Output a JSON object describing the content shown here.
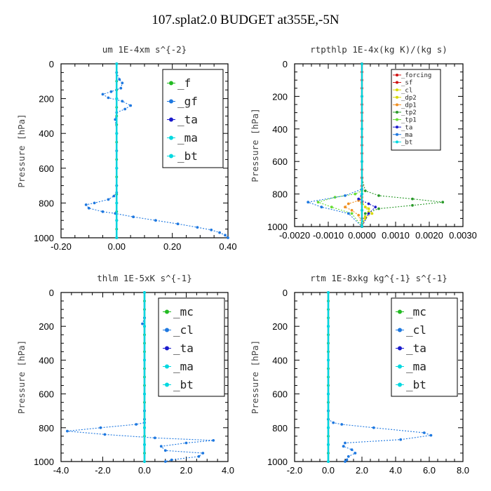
{
  "figure_title": "107.splat2.0  BUDGET at355E,-5N",
  "colors": {
    "green": "#22bb22",
    "blue": "#1e78e0",
    "navy": "#1a1acc",
    "cyan": "#00d8e0",
    "red": "#d01010",
    "orange": "#f09020",
    "yellow": "#d8d800",
    "lime": "#66dd33",
    "darkgreen": "#2a9a2a"
  },
  "chart_data": [
    {
      "type": "line",
      "title": "um   1E-4xm s^{-2}",
      "ylabel": "Pressure [hPa]",
      "xlim": [
        -0.2,
        0.4
      ],
      "ylim": [
        1000,
        0
      ],
      "xticks": [
        "-0.20",
        "0.00",
        "0.20",
        "0.40"
      ],
      "yticks": [
        "0",
        "200",
        "400",
        "600",
        "800",
        "1000"
      ],
      "legend": {
        "position": "top-right",
        "entries": [
          "_f",
          "_gf",
          "_ta",
          "_ma",
          "_bt"
        ]
      },
      "series": [
        {
          "name": "_f",
          "color": "#22bb22",
          "x": [
            0,
            0,
            0,
            0,
            0,
            0,
            0,
            0,
            0,
            0,
            0,
            0,
            0,
            0,
            0,
            0,
            0,
            0,
            0,
            0,
            0
          ],
          "y": [
            0,
            50,
            100,
            150,
            200,
            250,
            300,
            350,
            400,
            450,
            500,
            550,
            600,
            650,
            700,
            750,
            800,
            850,
            900,
            950,
            1000
          ]
        },
        {
          "name": "_gf",
          "color": "#1e78e0",
          "x": [
            0,
            0,
            0.01,
            0.02,
            0.015,
            -0.02,
            -0.05,
            -0.03,
            0.02,
            0.05,
            0.03,
            0,
            -0.005,
            0,
            0,
            0,
            0,
            0,
            -0.01,
            -0.03,
            -0.08,
            -0.11,
            -0.1,
            -0.05,
            -0.005,
            0.06,
            0.14,
            0.22,
            0.29,
            0.34,
            0.37,
            0.39,
            0.4
          ],
          "y": [
            0,
            50,
            90,
            110,
            140,
            160,
            175,
            195,
            215,
            240,
            260,
            280,
            320,
            400,
            500,
            600,
            700,
            740,
            760,
            780,
            800,
            810,
            830,
            850,
            860,
            880,
            900,
            920,
            940,
            955,
            970,
            985,
            1000
          ]
        },
        {
          "name": "_ta",
          "color": "#1a1acc",
          "x": [
            0,
            0,
            0,
            0,
            0,
            0,
            0
          ],
          "y": [
            0,
            200,
            400,
            600,
            800,
            900,
            1000
          ]
        },
        {
          "name": "_ma",
          "color": "#00d8e0",
          "x": [
            0,
            0,
            0,
            0,
            0,
            0,
            0
          ],
          "y": [
            0,
            200,
            400,
            600,
            800,
            900,
            1000
          ]
        },
        {
          "name": "_bt",
          "color": "#00d8e0",
          "x": [
            0,
            0,
            0,
            0,
            0,
            0,
            0
          ],
          "y": [
            0,
            200,
            400,
            600,
            800,
            900,
            1000
          ]
        }
      ]
    },
    {
      "type": "line",
      "title": "rtpthlp   1E-4x(kg K)/(kg s)",
      "ylabel": "Pressure [hPa]",
      "xlim": [
        -0.002,
        0.003
      ],
      "ylim": [
        1000,
        0
      ],
      "xticks": [
        "-0.0020",
        "-0.0010",
        "0.0000",
        "0.0010",
        "0.0020",
        "0.0030"
      ],
      "yticks": [
        "0",
        "200",
        "400",
        "600",
        "800",
        "1000"
      ],
      "legend": {
        "position": "top-right",
        "entries": [
          "_forcing",
          "_sf",
          "_cl",
          "_dp2",
          "_dp1",
          "_tp2",
          "_tp1",
          "_ta",
          "_ma",
          "_bt"
        ]
      },
      "series": [
        {
          "name": "_tp2",
          "color": "#2a9a2a",
          "x": [
            0,
            0,
            0.0001,
            0.0005,
            0.0015,
            0.0024,
            0.0015,
            0.0005,
            0.0001,
            0
          ],
          "y": [
            0,
            700,
            780,
            810,
            830,
            850,
            870,
            890,
            920,
            1000
          ]
        },
        {
          "name": "_tp1",
          "color": "#66dd33",
          "x": [
            0,
            0,
            -0.0002,
            -0.0008,
            -0.0013,
            -0.0009,
            -0.0003,
            0
          ],
          "y": [
            0,
            780,
            800,
            820,
            850,
            880,
            920,
            1000
          ]
        },
        {
          "name": "_dp1",
          "color": "#f09020",
          "x": [
            0,
            0,
            -0.0001,
            -0.0004,
            -0.0005,
            -0.0003,
            -0.0001,
            0
          ],
          "y": [
            0,
            820,
            840,
            860,
            880,
            900,
            930,
            1000
          ]
        },
        {
          "name": "_dp2",
          "color": "#d8d800",
          "x": [
            0,
            0,
            0.0001,
            0.0002,
            0.0001,
            0
          ],
          "y": [
            0,
            850,
            880,
            910,
            940,
            1000
          ]
        },
        {
          "name": "_cl",
          "color": "#d8d800",
          "x": [
            0,
            0,
            0.0002,
            0.0003,
            0.0001,
            0
          ],
          "y": [
            0,
            860,
            890,
            920,
            950,
            1000
          ]
        },
        {
          "name": "_ta",
          "color": "#1a1acc",
          "x": [
            0,
            0,
            -0.0001,
            0.0002,
            0.0004,
            0.0002,
            0
          ],
          "y": [
            0,
            800,
            830,
            860,
            880,
            920,
            1000
          ]
        },
        {
          "name": "_ma",
          "color": "#1e78e0",
          "x": [
            0,
            0,
            -0.0005,
            -0.0016,
            -0.0012,
            -0.0004,
            0
          ],
          "y": [
            0,
            770,
            810,
            850,
            880,
            920,
            1000
          ]
        },
        {
          "name": "_forcing",
          "color": "#d01010",
          "x": [
            0,
            0,
            0,
            0,
            0,
            0,
            0,
            0,
            0,
            0,
            0,
            0,
            0,
            0,
            0,
            0,
            0,
            0,
            0,
            0,
            0
          ],
          "y": [
            0,
            50,
            100,
            150,
            200,
            250,
            300,
            350,
            400,
            450,
            500,
            550,
            600,
            650,
            700,
            750,
            800,
            850,
            900,
            950,
            1000
          ]
        },
        {
          "name": "_sf",
          "color": "#d01010",
          "x": [
            0,
            0,
            0,
            0,
            0,
            0,
            0
          ],
          "y": [
            0,
            200,
            400,
            600,
            800,
            900,
            1000
          ]
        },
        {
          "name": "_bt",
          "color": "#00d8e0",
          "x": [
            0,
            0,
            0,
            0,
            0,
            0,
            0
          ],
          "y": [
            0,
            200,
            400,
            600,
            800,
            900,
            1000
          ]
        }
      ]
    },
    {
      "type": "line",
      "title": "thlm   1E-5xK s^{-1}",
      "ylabel": "Pressure [hPa]",
      "xlim": [
        -4.0,
        4.0
      ],
      "ylim": [
        1000,
        0
      ],
      "xticks": [
        "-4.0",
        "-2.0",
        "0.0",
        "2.0",
        "4.0"
      ],
      "yticks": [
        "0",
        "200",
        "400",
        "600",
        "800",
        "1000"
      ],
      "legend": {
        "position": "top-right",
        "entries": [
          "_mc",
          "_cl",
          "_ta",
          "_ma",
          "_bt"
        ]
      },
      "series": [
        {
          "name": "_mc",
          "color": "#22bb22",
          "x": [
            0,
            0,
            0,
            0,
            0,
            0,
            0,
            0,
            0,
            0,
            0,
            0,
            0,
            0,
            0,
            0,
            0,
            0,
            0,
            0,
            0
          ],
          "y": [
            0,
            50,
            100,
            150,
            200,
            250,
            300,
            350,
            400,
            450,
            500,
            550,
            600,
            650,
            700,
            750,
            800,
            850,
            900,
            950,
            1000
          ]
        },
        {
          "name": "_cl",
          "color": "#1e78e0",
          "x": [
            0,
            0,
            -0.1,
            0,
            0,
            0,
            0,
            0,
            0,
            -0.4,
            -2.1,
            -3.7,
            -1.9,
            0.5,
            3.3,
            2.0,
            0.8,
            1.0,
            2.8,
            2.6,
            1.3,
            1.0
          ],
          "y": [
            0,
            150,
            185,
            200,
            400,
            600,
            700,
            750,
            770,
            780,
            800,
            820,
            840,
            860,
            875,
            890,
            910,
            935,
            950,
            970,
            990,
            1000
          ]
        },
        {
          "name": "_ta",
          "color": "#1a1acc",
          "x": [
            0,
            0,
            0,
            0,
            0,
            0,
            0
          ],
          "y": [
            0,
            200,
            400,
            600,
            800,
            900,
            1000
          ]
        },
        {
          "name": "_ma",
          "color": "#00d8e0",
          "x": [
            0,
            0,
            0,
            0,
            0,
            0,
            0
          ],
          "y": [
            0,
            200,
            400,
            600,
            800,
            900,
            1000
          ]
        },
        {
          "name": "_bt",
          "color": "#00d8e0",
          "x": [
            0,
            0,
            0,
            0,
            0,
            0,
            0
          ],
          "y": [
            0,
            200,
            400,
            600,
            800,
            900,
            1000
          ]
        }
      ]
    },
    {
      "type": "line",
      "title": "rtm   1E-8xkg kg^{-1} s^{-1}",
      "ylabel": "Pressure [hPa]",
      "xlim": [
        -2.0,
        8.0
      ],
      "ylim": [
        1000,
        0
      ],
      "xticks": [
        "-2.0",
        "0.0",
        "2.0",
        "4.0",
        "6.0",
        "8.0"
      ],
      "yticks": [
        "0",
        "200",
        "400",
        "600",
        "800",
        "1000"
      ],
      "legend": {
        "position": "top-right",
        "entries": [
          "_mc",
          "_cl",
          "_ta",
          "_ma",
          "_bt"
        ]
      },
      "series": [
        {
          "name": "_mc",
          "color": "#22bb22",
          "x": [
            0,
            0,
            0,
            0,
            0,
            0,
            0,
            0,
            0,
            0,
            0,
            0,
            0,
            0,
            0,
            0,
            0,
            0,
            0,
            0,
            0
          ],
          "y": [
            0,
            50,
            100,
            150,
            200,
            250,
            300,
            350,
            400,
            450,
            500,
            550,
            600,
            650,
            700,
            750,
            800,
            850,
            900,
            950,
            1000
          ]
        },
        {
          "name": "_cl",
          "color": "#1e78e0",
          "x": [
            0,
            0,
            0,
            0,
            0,
            0,
            0.3,
            0.8,
            2.7,
            5.7,
            6.1,
            4.3,
            1.0,
            0.9,
            1.4,
            1.6,
            1.2,
            1.1,
            1.0
          ],
          "y": [
            0,
            200,
            400,
            600,
            700,
            750,
            770,
            780,
            800,
            830,
            845,
            870,
            890,
            910,
            930,
            950,
            970,
            990,
            1000
          ]
        },
        {
          "name": "_ta",
          "color": "#1a1acc",
          "x": [
            0,
            0,
            0,
            0,
            0,
            0,
            0
          ],
          "y": [
            0,
            200,
            400,
            600,
            800,
            900,
            1000
          ]
        },
        {
          "name": "_ma",
          "color": "#00d8e0",
          "x": [
            0,
            0,
            0,
            0,
            0,
            0,
            0
          ],
          "y": [
            0,
            200,
            400,
            600,
            800,
            900,
            1000
          ]
        },
        {
          "name": "_bt",
          "color": "#00d8e0",
          "x": [
            0,
            0,
            0,
            0,
            0,
            0,
            0
          ],
          "y": [
            0,
            200,
            400,
            600,
            800,
            900,
            1000
          ]
        }
      ]
    }
  ]
}
